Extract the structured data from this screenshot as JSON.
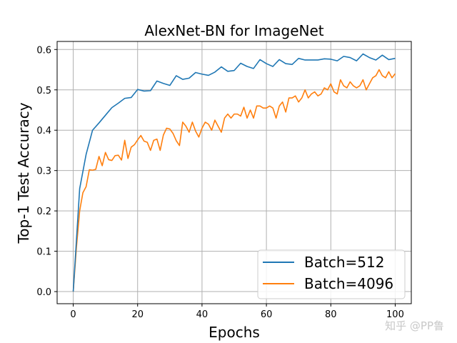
{
  "chart_data": {
    "type": "line",
    "title": "AlexNet-BN for ImageNet",
    "xlabel": "Epochs",
    "ylabel": "Top-1 Test Accuracy",
    "xlim": [
      -5,
      105
    ],
    "ylim": [
      -0.03,
      0.62
    ],
    "xticks": [
      0,
      20,
      40,
      60,
      80,
      100
    ],
    "yticks": [
      0.0,
      0.1,
      0.2,
      0.3,
      0.4,
      0.5,
      0.6
    ],
    "xtick_labels": [
      "0",
      "20",
      "40",
      "60",
      "80",
      "100"
    ],
    "ytick_labels": [
      "0.0",
      "0.1",
      "0.2",
      "0.3",
      "0.4",
      "0.5",
      "0.6"
    ],
    "grid": true,
    "legend_position": "bottom-right",
    "series": [
      {
        "name": "Batch=512",
        "color": "#1f77b4",
        "x": [
          0,
          2,
          4,
          6,
          8,
          10,
          12,
          14,
          16,
          18,
          20,
          22,
          24,
          26,
          28,
          30,
          32,
          34,
          36,
          38,
          40,
          42,
          44,
          46,
          48,
          50,
          52,
          54,
          56,
          58,
          60,
          62,
          64,
          66,
          68,
          70,
          72,
          74,
          76,
          78,
          80,
          82,
          84,
          86,
          88,
          90,
          92,
          94,
          96,
          98,
          100
        ],
        "values": [
          0.0,
          0.255,
          0.34,
          0.4,
          0.418,
          0.437,
          0.456,
          0.467,
          0.479,
          0.481,
          0.501,
          0.497,
          0.498,
          0.522,
          0.516,
          0.511,
          0.535,
          0.526,
          0.529,
          0.543,
          0.539,
          0.536,
          0.544,
          0.557,
          0.546,
          0.548,
          0.566,
          0.558,
          0.553,
          0.575,
          0.565,
          0.558,
          0.575,
          0.565,
          0.563,
          0.578,
          0.574,
          0.574,
          0.574,
          0.577,
          0.576,
          0.572,
          0.583,
          0.58,
          0.572,
          0.589,
          0.58,
          0.574,
          0.586,
          0.575,
          0.578
        ]
      },
      {
        "name": "Batch=4096",
        "color": "#ff7f0e",
        "x": [
          0,
          1,
          2,
          3,
          4,
          5,
          6,
          7,
          8,
          9,
          10,
          11,
          12,
          13,
          14,
          15,
          16,
          17,
          18,
          19,
          20,
          21,
          22,
          23,
          24,
          25,
          26,
          27,
          28,
          29,
          30,
          31,
          32,
          33,
          34,
          35,
          36,
          37,
          38,
          39,
          40,
          41,
          42,
          43,
          44,
          45,
          46,
          47,
          48,
          49,
          50,
          51,
          52,
          53,
          54,
          55,
          56,
          57,
          58,
          59,
          60,
          61,
          62,
          63,
          64,
          65,
          66,
          67,
          68,
          69,
          70,
          71,
          72,
          73,
          74,
          75,
          76,
          77,
          78,
          79,
          80,
          81,
          82,
          83,
          84,
          85,
          86,
          87,
          88,
          89,
          90,
          91,
          92,
          93,
          94,
          95,
          96,
          97,
          98,
          99,
          100
        ],
        "values": [
          0.0,
          0.11,
          0.2,
          0.245,
          0.26,
          0.302,
          0.301,
          0.303,
          0.335,
          0.312,
          0.345,
          0.327,
          0.325,
          0.337,
          0.338,
          0.326,
          0.375,
          0.33,
          0.358,
          0.364,
          0.376,
          0.387,
          0.373,
          0.37,
          0.35,
          0.375,
          0.378,
          0.35,
          0.388,
          0.405,
          0.403,
          0.392,
          0.374,
          0.362,
          0.42,
          0.41,
          0.395,
          0.42,
          0.398,
          0.383,
          0.405,
          0.42,
          0.415,
          0.4,
          0.425,
          0.41,
          0.395,
          0.43,
          0.44,
          0.43,
          0.44,
          0.44,
          0.435,
          0.457,
          0.43,
          0.45,
          0.43,
          0.46,
          0.46,
          0.455,
          0.455,
          0.46,
          0.455,
          0.43,
          0.46,
          0.47,
          0.445,
          0.48,
          0.48,
          0.485,
          0.47,
          0.48,
          0.5,
          0.48,
          0.49,
          0.495,
          0.485,
          0.49,
          0.505,
          0.5,
          0.515,
          0.495,
          0.49,
          0.525,
          0.51,
          0.505,
          0.52,
          0.51,
          0.505,
          0.51,
          0.525,
          0.5,
          0.515,
          0.53,
          0.535,
          0.55,
          0.535,
          0.53,
          0.545,
          0.53,
          0.54
        ]
      }
    ]
  },
  "watermark": "知乎 @PP鲁"
}
